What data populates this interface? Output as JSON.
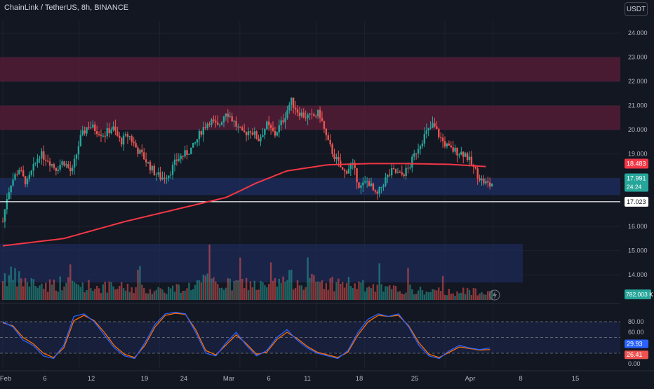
{
  "header": {
    "title": "ChainLink / TetherUS, 8h, BINANCE",
    "currency_button": "USDT"
  },
  "colors": {
    "background": "#131722",
    "up": "#26a69a",
    "down": "#ef5350",
    "ma": "#f23645",
    "resistance_zone": "#5c1e3a",
    "support_zone": "#1c2b59",
    "stoch_k": "#2962ff",
    "stoch_d": "#ff6d00",
    "level_line": "#ffffff"
  },
  "price_axis": {
    "ticks": [
      "24.000",
      "23.000",
      "22.000",
      "21.000",
      "20.000",
      "19.000",
      "16.000",
      "15.000",
      "14.000"
    ]
  },
  "badges": {
    "ma": "18.483",
    "price": "17.991",
    "countdown": "24:24",
    "level": "17.023",
    "volume": "782.003 K",
    "stoch_k": "29.93",
    "stoch_d": "26.41"
  },
  "stoch_axis": {
    "ticks": [
      "80.00",
      "60.00",
      "0.00"
    ]
  },
  "time_axis": {
    "labels": [
      "Feb",
      "6",
      "12",
      "19",
      "24",
      "Mar",
      "6",
      "11",
      "18",
      "25",
      "Apr",
      "8",
      "15"
    ]
  },
  "chart_data": {
    "type": "candlestick",
    "symbol": "ChainLink / TetherUS",
    "interval": "8h",
    "exchange": "BINANCE",
    "ylim": [
      12.9,
      24.5
    ],
    "last_price": 17.991,
    "moving_average_last": 18.483,
    "horizontal_level": 17.023,
    "zones": [
      {
        "type": "resistance",
        "from": 22.0,
        "to": 23.0
      },
      {
        "type": "resistance",
        "from": 20.0,
        "to": 21.0
      },
      {
        "type": "support",
        "from": 17.3,
        "to": 18.0
      }
    ],
    "price_path": [
      [
        0,
        16.2
      ],
      [
        2,
        17.2
      ],
      [
        4,
        17.8
      ],
      [
        8,
        18.4
      ],
      [
        10,
        18.0
      ],
      [
        12,
        17.8
      ],
      [
        14,
        18.2
      ],
      [
        18,
        19.0
      ],
      [
        22,
        18.8
      ],
      [
        26,
        18.4
      ],
      [
        30,
        18.7
      ],
      [
        34,
        18.2
      ],
      [
        38,
        19.6
      ],
      [
        42,
        20.2
      ],
      [
        46,
        20.0
      ],
      [
        50,
        19.8
      ],
      [
        54,
        20.1
      ],
      [
        58,
        19.5
      ],
      [
        62,
        19.8
      ],
      [
        66,
        19.2
      ],
      [
        70,
        18.8
      ],
      [
        74,
        18.3
      ],
      [
        78,
        18.0
      ],
      [
        82,
        18.2
      ],
      [
        86,
        18.8
      ],
      [
        90,
        19.0
      ],
      [
        94,
        19.3
      ],
      [
        98,
        20.0
      ],
      [
        102,
        20.4
      ],
      [
        106,
        20.1
      ],
      [
        110,
        20.8
      ],
      [
        114,
        20.3
      ],
      [
        118,
        19.8
      ],
      [
        122,
        20.0
      ],
      [
        126,
        19.6
      ],
      [
        130,
        20.2
      ],
      [
        134,
        19.8
      ],
      [
        138,
        20.4
      ],
      [
        142,
        21.2
      ],
      [
        145,
        20.8
      ],
      [
        148,
        20.6
      ],
      [
        152,
        20.5
      ],
      [
        156,
        20.7
      ],
      [
        160,
        19.5
      ],
      [
        164,
        18.8
      ],
      [
        168,
        18.2
      ],
      [
        172,
        18.6
      ],
      [
        176,
        17.6
      ],
      [
        180,
        17.9
      ],
      [
        184,
        17.2
      ],
      [
        188,
        17.9
      ],
      [
        192,
        18.3
      ],
      [
        196,
        18.1
      ],
      [
        200,
        18.4
      ],
      [
        204,
        19.2
      ],
      [
        208,
        19.8
      ],
      [
        212,
        20.2
      ],
      [
        216,
        19.6
      ],
      [
        220,
        19.2
      ],
      [
        224,
        19.1
      ],
      [
        228,
        19.0
      ],
      [
        232,
        18.4
      ],
      [
        236,
        17.9
      ],
      [
        240,
        17.7
      ],
      [
        242,
        17.9
      ]
    ],
    "ma_path": [
      [
        0,
        15.2
      ],
      [
        30,
        15.5
      ],
      [
        60,
        16.2
      ],
      [
        90,
        16.8
      ],
      [
        110,
        17.2
      ],
      [
        125,
        17.8
      ],
      [
        140,
        18.3
      ],
      [
        160,
        18.55
      ],
      [
        180,
        18.6
      ],
      [
        200,
        18.6
      ],
      [
        220,
        18.57
      ],
      [
        238,
        18.48
      ]
    ],
    "volume_path": [
      [
        0,
        1.2
      ],
      [
        10,
        0.9
      ],
      [
        20,
        0.7
      ],
      [
        30,
        0.8
      ],
      [
        40,
        0.7
      ],
      [
        50,
        0.6
      ],
      [
        60,
        0.6
      ],
      [
        70,
        0.5
      ],
      [
        80,
        0.5
      ],
      [
        90,
        0.6
      ],
      [
        100,
        0.9
      ],
      [
        110,
        0.7
      ],
      [
        120,
        0.8
      ],
      [
        130,
        0.6
      ],
      [
        140,
        1.0
      ],
      [
        150,
        0.9
      ],
      [
        160,
        0.8
      ],
      [
        170,
        0.8
      ],
      [
        180,
        0.6
      ],
      [
        190,
        0.5
      ],
      [
        200,
        0.5
      ],
      [
        210,
        0.4
      ],
      [
        220,
        0.4
      ],
      [
        230,
        0.4
      ],
      [
        240,
        0.5
      ]
    ],
    "stochastic": {
      "k_last": 29.93,
      "d_last": 26.41,
      "ylim": [
        0,
        100
      ],
      "bands": [
        20,
        80
      ],
      "k_path": [
        [
          0,
          80
        ],
        [
          5,
          70
        ],
        [
          10,
          45
        ],
        [
          15,
          35
        ],
        [
          20,
          15
        ],
        [
          25,
          10
        ],
        [
          30,
          35
        ],
        [
          35,
          90
        ],
        [
          40,
          95
        ],
        [
          45,
          80
        ],
        [
          50,
          55
        ],
        [
          55,
          30
        ],
        [
          60,
          15
        ],
        [
          65,
          10
        ],
        [
          70,
          40
        ],
        [
          75,
          75
        ],
        [
          80,
          95
        ],
        [
          85,
          98
        ],
        [
          90,
          95
        ],
        [
          95,
          60
        ],
        [
          100,
          20
        ],
        [
          105,
          15
        ],
        [
          110,
          40
        ],
        [
          115,
          60
        ],
        [
          120,
          35
        ],
        [
          125,
          15
        ],
        [
          130,
          25
        ],
        [
          135,
          50
        ],
        [
          140,
          65
        ],
        [
          145,
          45
        ],
        [
          150,
          30
        ],
        [
          155,
          20
        ],
        [
          160,
          15
        ],
        [
          165,
          10
        ],
        [
          170,
          25
        ],
        [
          175,
          60
        ],
        [
          180,
          85
        ],
        [
          185,
          95
        ],
        [
          190,
          90
        ],
        [
          195,
          95
        ],
        [
          200,
          70
        ],
        [
          205,
          35
        ],
        [
          210,
          15
        ],
        [
          215,
          10
        ],
        [
          220,
          25
        ],
        [
          225,
          35
        ],
        [
          230,
          30
        ],
        [
          235,
          27
        ],
        [
          240,
          30
        ]
      ],
      "d_path": [
        [
          0,
          78
        ],
        [
          5,
          72
        ],
        [
          10,
          50
        ],
        [
          15,
          38
        ],
        [
          20,
          20
        ],
        [
          25,
          12
        ],
        [
          30,
          30
        ],
        [
          35,
          82
        ],
        [
          40,
          92
        ],
        [
          45,
          82
        ],
        [
          50,
          60
        ],
        [
          55,
          34
        ],
        [
          60,
          18
        ],
        [
          65,
          12
        ],
        [
          70,
          35
        ],
        [
          75,
          70
        ],
        [
          80,
          92
        ],
        [
          85,
          96
        ],
        [
          90,
          94
        ],
        [
          95,
          65
        ],
        [
          100,
          25
        ],
        [
          105,
          17
        ],
        [
          110,
          36
        ],
        [
          115,
          55
        ],
        [
          120,
          38
        ],
        [
          125,
          18
        ],
        [
          130,
          22
        ],
        [
          135,
          46
        ],
        [
          140,
          60
        ],
        [
          145,
          48
        ],
        [
          150,
          33
        ],
        [
          155,
          22
        ],
        [
          160,
          17
        ],
        [
          165,
          12
        ],
        [
          170,
          22
        ],
        [
          175,
          55
        ],
        [
          180,
          80
        ],
        [
          185,
          92
        ],
        [
          190,
          90
        ],
        [
          195,
          92
        ],
        [
          200,
          72
        ],
        [
          205,
          40
        ],
        [
          210,
          18
        ],
        [
          215,
          12
        ],
        [
          220,
          22
        ],
        [
          225,
          32
        ],
        [
          230,
          29
        ],
        [
          235,
          26
        ],
        [
          240,
          27
        ]
      ]
    }
  }
}
